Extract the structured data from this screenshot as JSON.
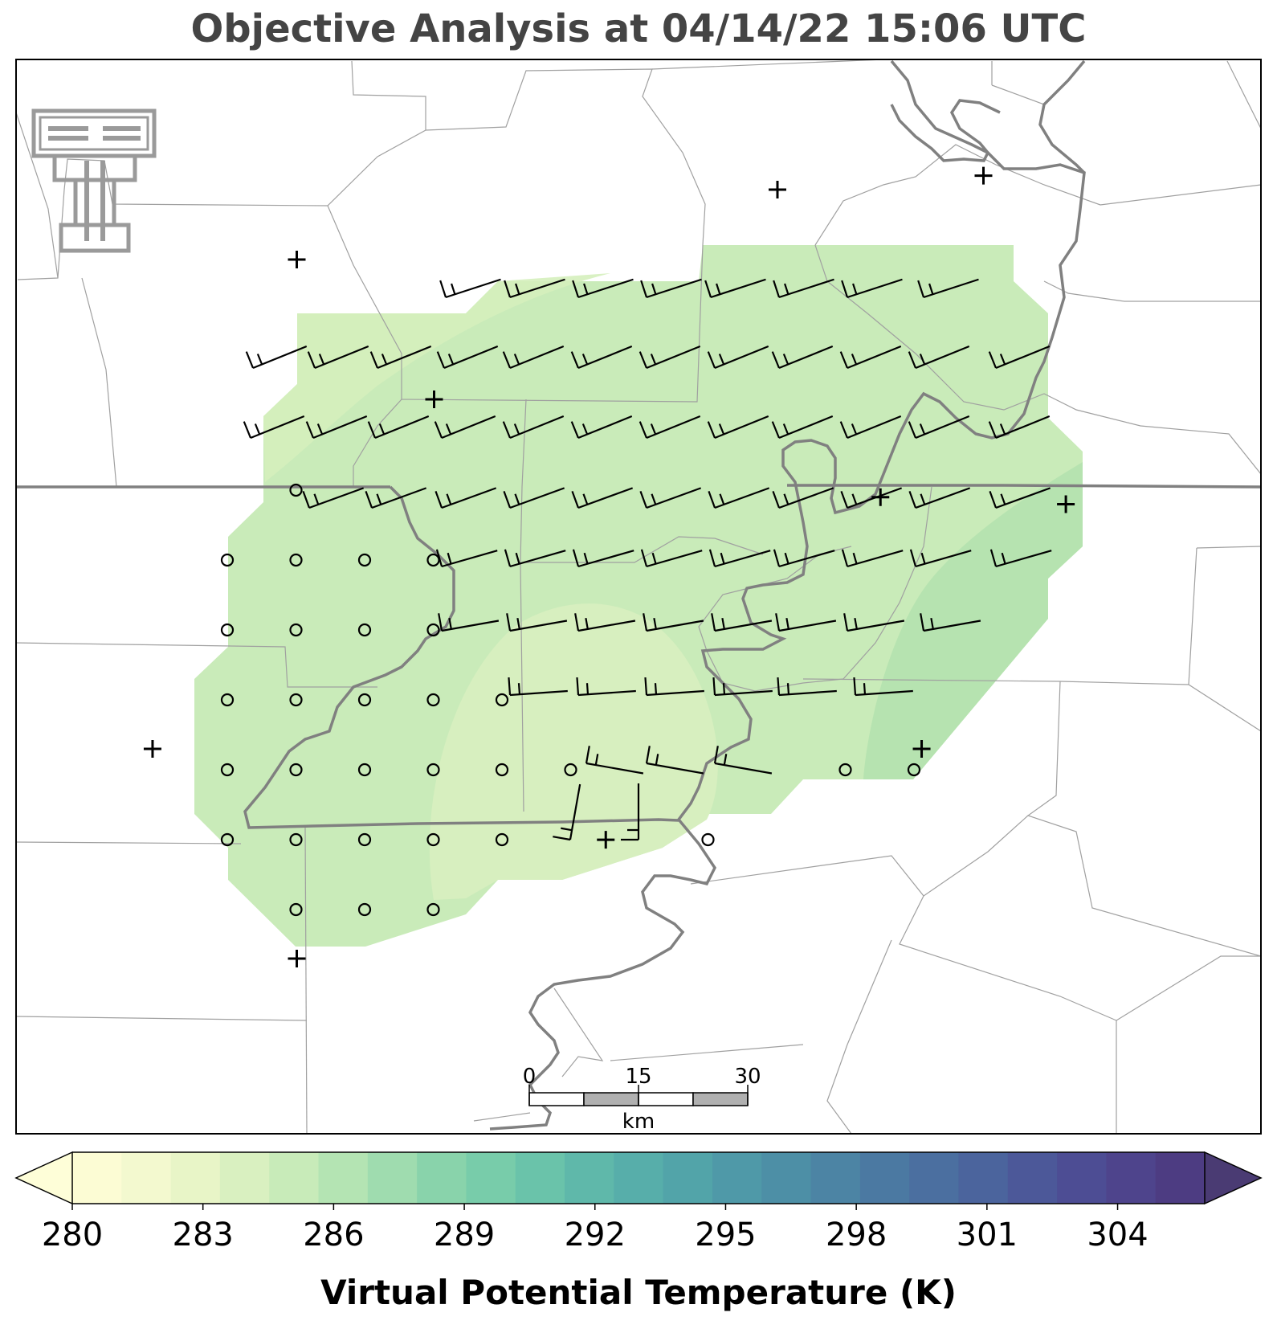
{
  "title": "Objective Analysis at 04/14/22 15:06 UTC",
  "colorbar": {
    "label": "Virtual Potential Temperature (K)",
    "ticks": [
      "280",
      "283",
      "286",
      "289",
      "292",
      "295",
      "298",
      "301",
      "304"
    ],
    "min": 280,
    "max": 306,
    "colors": [
      "#fcfcd4",
      "#f3f9cf",
      "#e8f5c7",
      "#d9f0c0",
      "#c8ebb9",
      "#b4e4b3",
      "#9fdcaf",
      "#89d3ab",
      "#78ccaa",
      "#6ac3aa",
      "#5fb8aa",
      "#57aeaa",
      "#52a4a9",
      "#4f99a8",
      "#4d8fa6",
      "#4c84a4",
      "#4b79a2",
      "#4b6fa0",
      "#4b649d",
      "#4c5899",
      "#4d4d94",
      "#4e448c",
      "#4d3c82"
    ]
  },
  "scale_bar": {
    "labels": [
      "0",
      "15",
      "30"
    ],
    "unit": "km"
  },
  "logo": {
    "name": "texas-tech-double-t-logo"
  },
  "stations": {
    "calm_circles": [
      [
        1,
        4
      ],
      [
        0,
        5
      ],
      [
        1,
        5
      ],
      [
        2,
        5
      ],
      [
        3,
        5
      ],
      [
        0,
        6
      ],
      [
        1,
        6
      ],
      [
        2,
        6
      ],
      [
        3,
        6
      ],
      [
        0,
        7
      ],
      [
        1,
        7
      ],
      [
        2,
        7
      ],
      [
        3,
        7
      ],
      [
        4,
        7
      ],
      [
        0,
        8
      ],
      [
        1,
        8
      ],
      [
        2,
        8
      ],
      [
        3,
        8
      ],
      [
        4,
        8
      ],
      [
        5,
        8
      ],
      [
        0,
        9
      ],
      [
        1,
        9
      ],
      [
        2,
        9
      ],
      [
        3,
        9
      ],
      [
        4,
        9
      ],
      [
        1,
        10
      ],
      [
        2,
        10
      ],
      [
        3,
        10
      ],
      [
        7,
        9
      ],
      [
        9,
        8
      ],
      [
        10,
        8
      ]
    ],
    "plus_markers": [
      [
        1,
        1
      ],
      [
        3,
        3
      ],
      [
        8,
        0
      ],
      [
        11,
        -0.2
      ],
      [
        9.5,
        4.4
      ],
      [
        12.2,
        4.5
      ],
      [
        -1.1,
        8
      ],
      [
        1,
        11
      ],
      [
        5.5,
        9.3
      ],
      [
        10.1,
        8
      ]
    ]
  },
  "palette": {
    "shade_light": "#d8efbf",
    "shade_main": "#c9ebb9",
    "shade_dark": "#b5e3b0",
    "river": "#808080",
    "border": "#a0a0a0"
  }
}
